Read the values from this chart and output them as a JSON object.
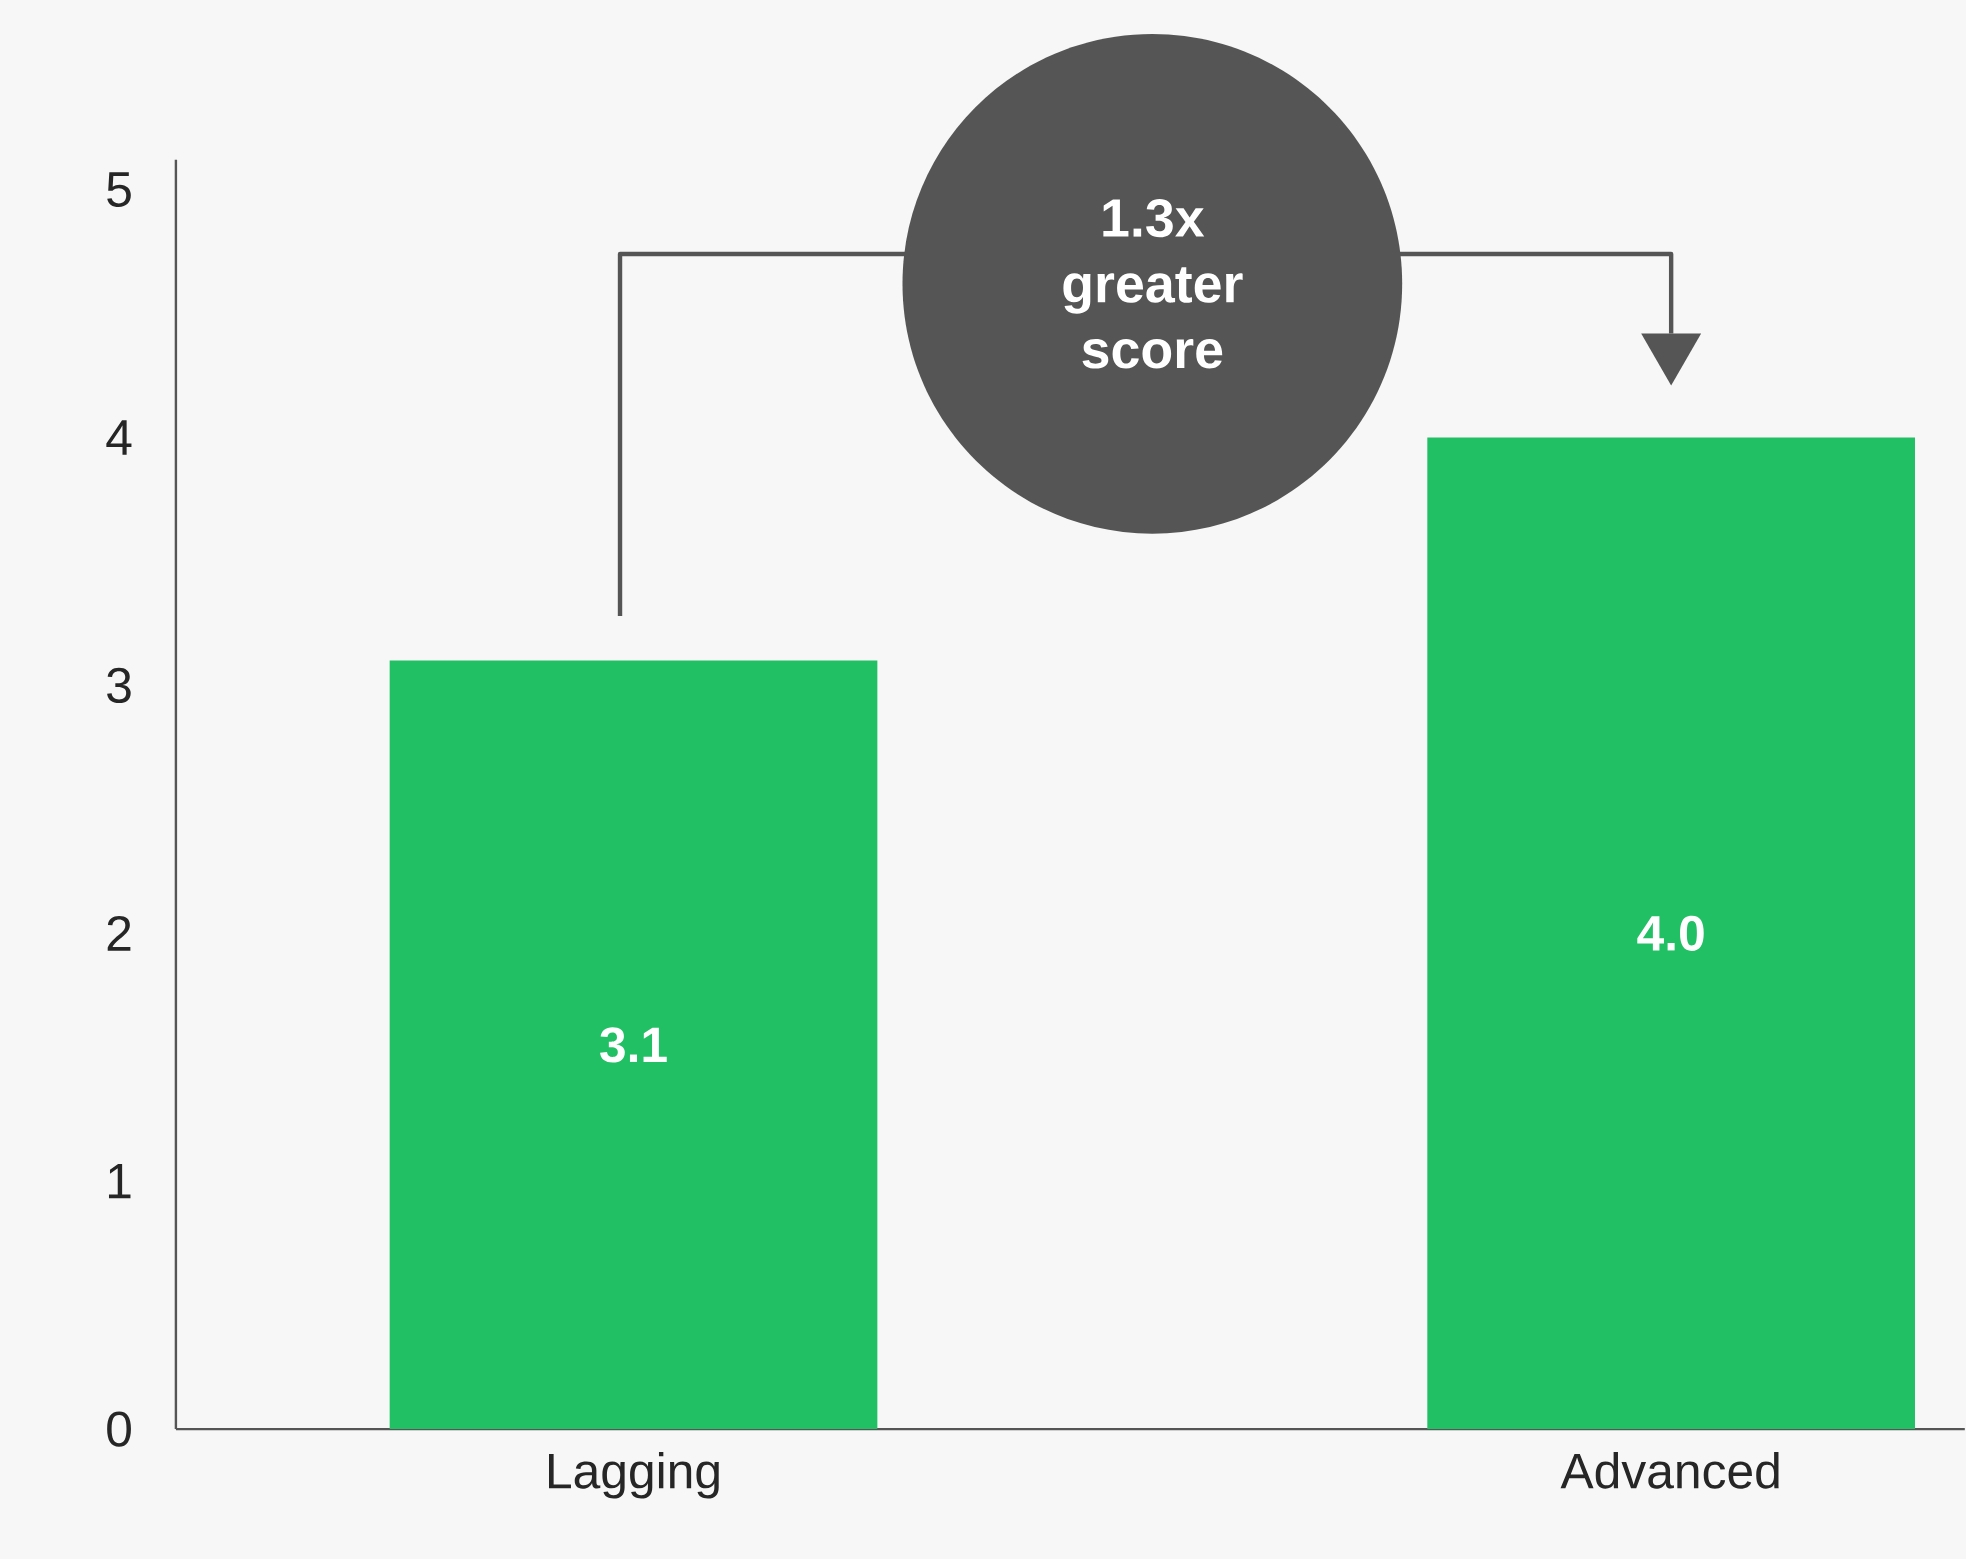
{
  "chart_data": {
    "type": "bar",
    "categories": [
      "Lagging",
      "Advanced"
    ],
    "values": [
      3.1,
      4.0
    ],
    "color": "#22c065",
    "ylim": [
      0,
      5.12
    ],
    "yticks": [
      0,
      1,
      2,
      3,
      4,
      5
    ],
    "value_labels": [
      "3.1",
      "4.0"
    ],
    "grid": false,
    "annotations": [
      "1.3x greater score"
    ]
  }
}
